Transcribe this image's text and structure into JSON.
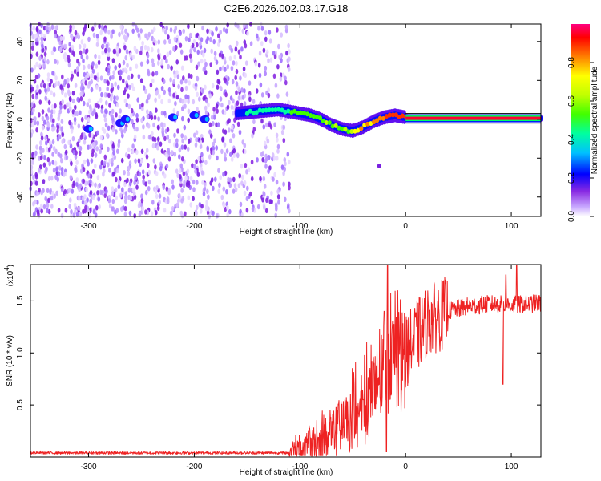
{
  "figure_title": "C2E6.2026.002.03.17.G18",
  "chart_data": [
    {
      "type": "heatmap",
      "title": "C2E6.2026.002.03.17.G18",
      "xlabel": "Height of straight line (km)",
      "ylabel": "Frequency (Hz)",
      "xlim": [
        -355,
        128
      ],
      "ylim": [
        -50,
        49
      ],
      "xticks": [
        -300,
        -200,
        -100,
        0,
        100
      ],
      "yticks": [
        -40,
        -20,
        0,
        20,
        40
      ],
      "colorbar": {
        "label": "Normalized spectral amplitude",
        "range": [
          0,
          1
        ],
        "ticks": [
          0.0,
          0.2,
          0.4,
          0.6,
          0.8
        ],
        "colors": [
          "#ffffff",
          "#c8a8ff",
          "#8a2be2",
          "#0000ff",
          "#00c0ff",
          "#00ffa0",
          "#40ff00",
          "#c0ff00",
          "#ffff00",
          "#ff8000",
          "#ff0000",
          "#ff0080"
        ]
      },
      "ridge": {
        "x": [
          -160,
          -140,
          -120,
          -100,
          -90,
          -80,
          -70,
          -60,
          -50,
          -40,
          -30,
          -20,
          -10,
          0,
          10,
          40,
          80,
          128
        ],
        "y": [
          3,
          4,
          5,
          3,
          2,
          0,
          -3,
          -5,
          -6,
          -4,
          -1,
          1,
          2,
          1,
          0.5,
          0.5,
          0.5,
          0.5
        ]
      },
      "noise_region_x": [
        -355,
        -110
      ],
      "colorbar_tick_labels": [
        "0.0",
        "0.2",
        "0.4",
        "0.6",
        "0.8"
      ]
    },
    {
      "type": "line",
      "title": "",
      "xlabel": "Height of straight line (km)",
      "ylabel": "SNR (10 * v/v)",
      "scale_label": "(x10",
      "scale_exponent": "4",
      "scale_close": ")",
      "xlim": [
        -355,
        128
      ],
      "ylim": [
        0,
        1.85
      ],
      "xticks": [
        -300,
        -200,
        -100,
        0,
        100
      ],
      "yticks": [
        0.5,
        1.0,
        1.5
      ],
      "ytick_labels": [
        "0.5",
        "1.0",
        "1.5"
      ],
      "color": "#ee2222",
      "envelope": {
        "x": [
          -355,
          -110,
          -100,
          -90,
          -80,
          -70,
          -60,
          -50,
          -40,
          -30,
          -20,
          -15,
          -10,
          0,
          10,
          20,
          30,
          40,
          60,
          80,
          100,
          128
        ],
        "y": [
          0.04,
          0.04,
          0.06,
          0.1,
          0.15,
          0.2,
          0.28,
          0.35,
          0.45,
          0.6,
          0.8,
          0.9,
          0.85,
          1.0,
          1.15,
          1.3,
          1.35,
          1.4,
          1.45,
          1.47,
          1.46,
          1.48
        ]
      },
      "spikes": [
        {
          "x": -40,
          "y": 0.55
        },
        {
          "x": -30,
          "y": 0.9
        },
        {
          "x": -20,
          "y": 1.4
        },
        {
          "x": -17,
          "y": 1.85
        },
        {
          "x": -12,
          "y": 1.3
        },
        {
          "x": 95,
          "y": 1.75
        },
        {
          "x": 105,
          "y": 1.85
        }
      ],
      "dips": [
        {
          "x": -18,
          "y": 0.05
        },
        {
          "x": 92,
          "y": 0.7
        }
      ]
    }
  ]
}
